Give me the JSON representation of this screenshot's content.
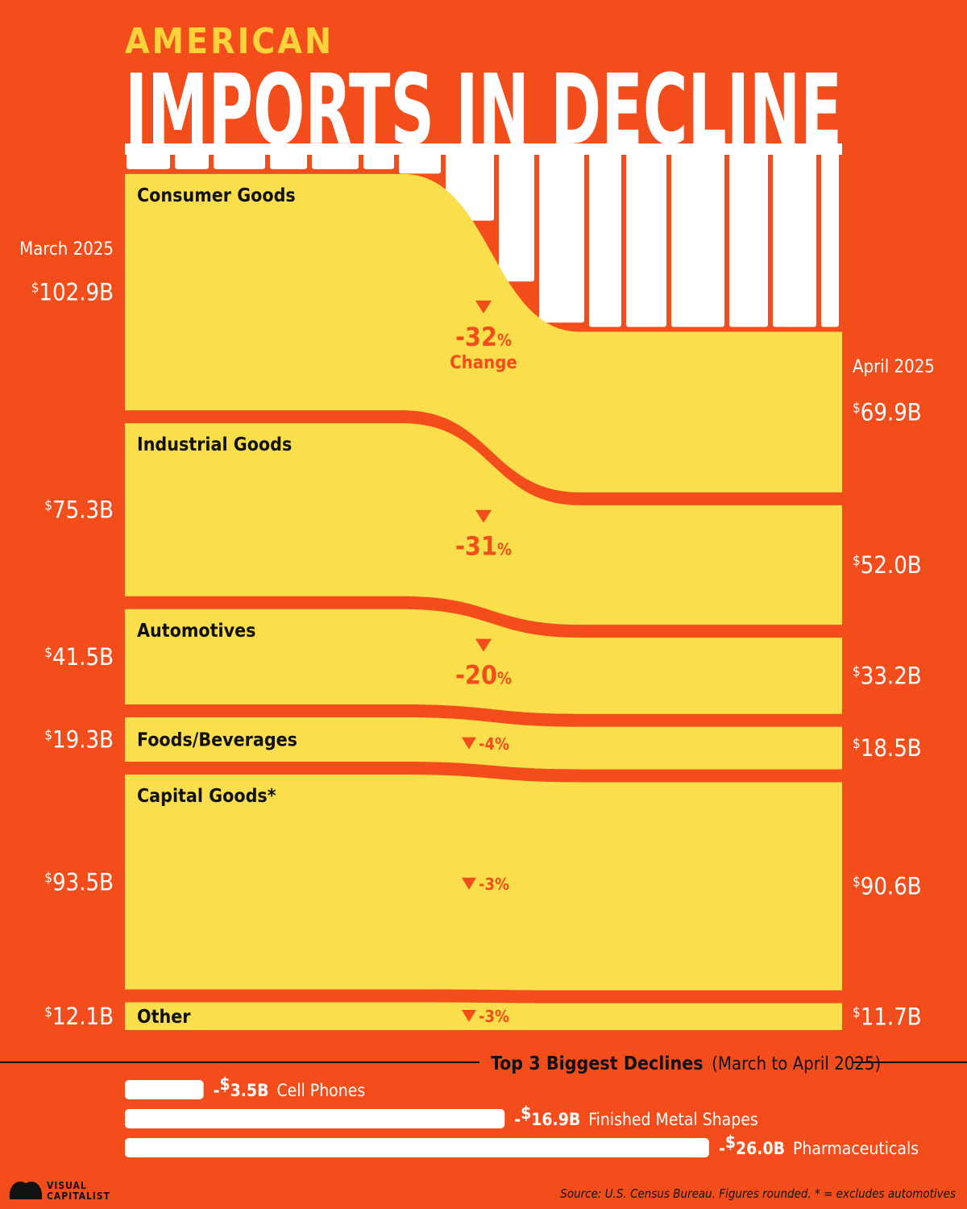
{
  "header": {
    "kicker": "AMERICAN",
    "title": "IMPORTS IN DECLINE"
  },
  "colors": {
    "background": "#f44d1c",
    "band": "#fbde4b",
    "title_text": "#fbd33a",
    "white": "#ffffff",
    "dark": "#111111"
  },
  "chart_data": {
    "type": "area",
    "x": [
      "March 2025",
      "April 2025"
    ],
    "currency": "$",
    "unit": "B",
    "change_label": "Change",
    "series": [
      {
        "name": "Consumer Goods",
        "start": "102.9",
        "end": "69.9",
        "change": "-32"
      },
      {
        "name": "Industrial Goods",
        "start": "75.3",
        "end": "52.0",
        "change": "-31"
      },
      {
        "name": "Automotives",
        "start": "41.5",
        "end": "33.2",
        "change": "-20"
      },
      {
        "name": "Foods/Beverages",
        "start": "19.3",
        "end": "18.5",
        "change": "-4"
      },
      {
        "name": "Capital Goods*",
        "start": "93.5",
        "end": "90.6",
        "change": "-3"
      },
      {
        "name": "Other",
        "start": "12.1",
        "end": "11.7",
        "change": "-3"
      }
    ]
  },
  "declines": {
    "title": "Top 3 Biggest Declines",
    "subtitle": "(March to April 2025)",
    "items": [
      {
        "label": "Cell Phones",
        "value": 3.5,
        "display": "3.5B"
      },
      {
        "label": "Finished Metal Shapes",
        "value": 16.9,
        "display": "16.9B"
      },
      {
        "label": "Pharmaceuticals",
        "value": 26.0,
        "display": "26.0B"
      }
    ]
  },
  "footer": {
    "logo_line1": "VISUAL",
    "logo_line2": "CAPITALIST",
    "source": "Source: U.S. Census Bureau. Figures rounded. * = excludes automotives"
  }
}
